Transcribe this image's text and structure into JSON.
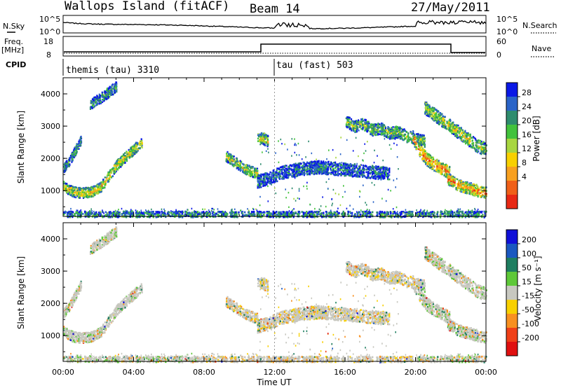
{
  "header": {
    "station": "Wallops Island (fitACF)",
    "beam": "Beam 14",
    "date": "27/May/2011"
  },
  "top_panel": {
    "left_label": "N.Sky",
    "right_label": "N.Search",
    "left_ticks": [
      "10^5",
      "10^0"
    ],
    "right_ticks": [
      "10^5",
      "10^0"
    ]
  },
  "freq_panel": {
    "label_line1": "Freq.",
    "label_line2": "[MHz]",
    "left_ticks": [
      "18",
      "8"
    ],
    "right_label": "Nave",
    "right_ticks": [
      "60",
      "0"
    ]
  },
  "cpid_panel": {
    "label": "CPID",
    "segments": [
      {
        "text": "themis (tau) 3310",
        "start_hour": 0
      },
      {
        "text": "tau (fast) 503",
        "start_hour": 12
      }
    ]
  },
  "chart_data": [
    {
      "type": "heatmap",
      "name": "power",
      "xlabel": "",
      "ylabel": "Slant Range [km]",
      "x_unit": "hours UT",
      "xlim": [
        0,
        24
      ],
      "ylim": [
        200,
        4500
      ],
      "yticks": [
        "1000",
        "2000",
        "3000",
        "4000"
      ],
      "colorbar": {
        "label": "Power [dB]",
        "ticks": [
          "28",
          "24",
          "20",
          "16",
          "12",
          "8",
          "4"
        ],
        "colors": [
          "#0a18e6",
          "#2a64c8",
          "#2e8c6e",
          "#42c23c",
          "#a8d640",
          "#f8d000",
          "#f8a020",
          "#f06018",
          "#e82814"
        ]
      },
      "echo_bands": [
        {
          "t": [
            0.0,
            0.3,
            0.6,
            1.0,
            1.5,
            2.0,
            2.3,
            2.6,
            3.0,
            3.5,
            4.0,
            4.5
          ],
          "r": [
            1150,
            1050,
            980,
            950,
            980,
            1080,
            1250,
            1500,
            1800,
            2050,
            2300,
            2550
          ],
          "width": 160,
          "level": 0.6
        },
        {
          "t": [
            0.0,
            0.3,
            0.6,
            1.0
          ],
          "r": [
            1700,
            1900,
            2200,
            2600
          ],
          "width": 140,
          "level": 0.3
        },
        {
          "t": [
            9.2,
            9.6,
            10.0,
            10.5,
            11.0
          ],
          "r": [
            2100,
            1950,
            1800,
            1650,
            1550
          ],
          "width": 160,
          "level": 0.55
        },
        {
          "t": [
            11.0,
            11.3,
            11.6
          ],
          "r": [
            2600,
            2650,
            2550
          ],
          "width": 180,
          "level": 0.6
        },
        {
          "t": [
            11.0,
            11.8,
            12.5,
            13.5,
            14.5,
            15.5,
            16.5,
            17.5,
            18.5
          ],
          "r": [
            1300,
            1450,
            1600,
            1700,
            1750,
            1700,
            1650,
            1600,
            1550
          ],
          "width": 200,
          "level": 0.2
        },
        {
          "t": [
            16.0,
            16.5,
            17.0,
            17.5,
            18.0,
            18.5,
            19.0,
            19.5,
            20.0,
            20.5
          ],
          "r": [
            3200,
            3000,
            3100,
            2900,
            2950,
            2800,
            2850,
            2700,
            2650,
            2550
          ],
          "width": 180,
          "level": 0.45
        },
        {
          "t": [
            19.8,
            20.2,
            20.6,
            21.0,
            21.5,
            21.9
          ],
          "r": [
            2700,
            2300,
            2000,
            1850,
            1700,
            1600
          ],
          "width": 200,
          "level": 0.85
        },
        {
          "t": [
            20.5,
            21.0,
            21.5,
            22.0,
            22.5,
            23.0,
            23.5,
            24.0
          ],
          "r": [
            3600,
            3400,
            3200,
            3000,
            2800,
            2600,
            2400,
            2300
          ],
          "width": 200,
          "level": 0.55
        },
        {
          "t": [
            21.8,
            22.2,
            22.6,
            23.0,
            23.5,
            24.0
          ],
          "r": [
            1400,
            1250,
            1150,
            1100,
            1020,
            950
          ],
          "width": 180,
          "level": 0.8
        },
        {
          "t": [
            1.5,
            2.0,
            2.5,
            3.0
          ],
          "r": [
            3700,
            3850,
            4050,
            4250
          ],
          "width": 160,
          "level": 0.3
        },
        {
          "t": [
            0.0,
            4.0,
            8.0,
            12.0,
            16.0,
            20.0,
            24.0
          ],
          "r": [
            260,
            260,
            260,
            260,
            260,
            260,
            260
          ],
          "width": 120,
          "level": 0.3
        }
      ]
    },
    {
      "type": "heatmap",
      "name": "velocity",
      "xlabel": "Time UT",
      "ylabel": "Slant Range [km]",
      "x_unit": "hours UT",
      "xlim": [
        0,
        24
      ],
      "ylim": [
        200,
        4500
      ],
      "xticks": [
        "00:00",
        "04:00",
        "08:00",
        "12:00",
        "16:00",
        "20:00",
        "00:00"
      ],
      "yticks": [
        "1000",
        "2000",
        "3000",
        "4000"
      ],
      "colorbar": {
        "label": "Velocity [m s⁻¹]",
        "ticks": [
          "200",
          "100",
          "50",
          "15",
          "-15",
          "-50",
          "-100",
          "-200"
        ],
        "colors": [
          "#1010d8",
          "#1a58c0",
          "#1e7e60",
          "#5ec838",
          "#c8c8c0",
          "#f8d000",
          "#f89020",
          "#f04018",
          "#e01010"
        ]
      }
    }
  ]
}
